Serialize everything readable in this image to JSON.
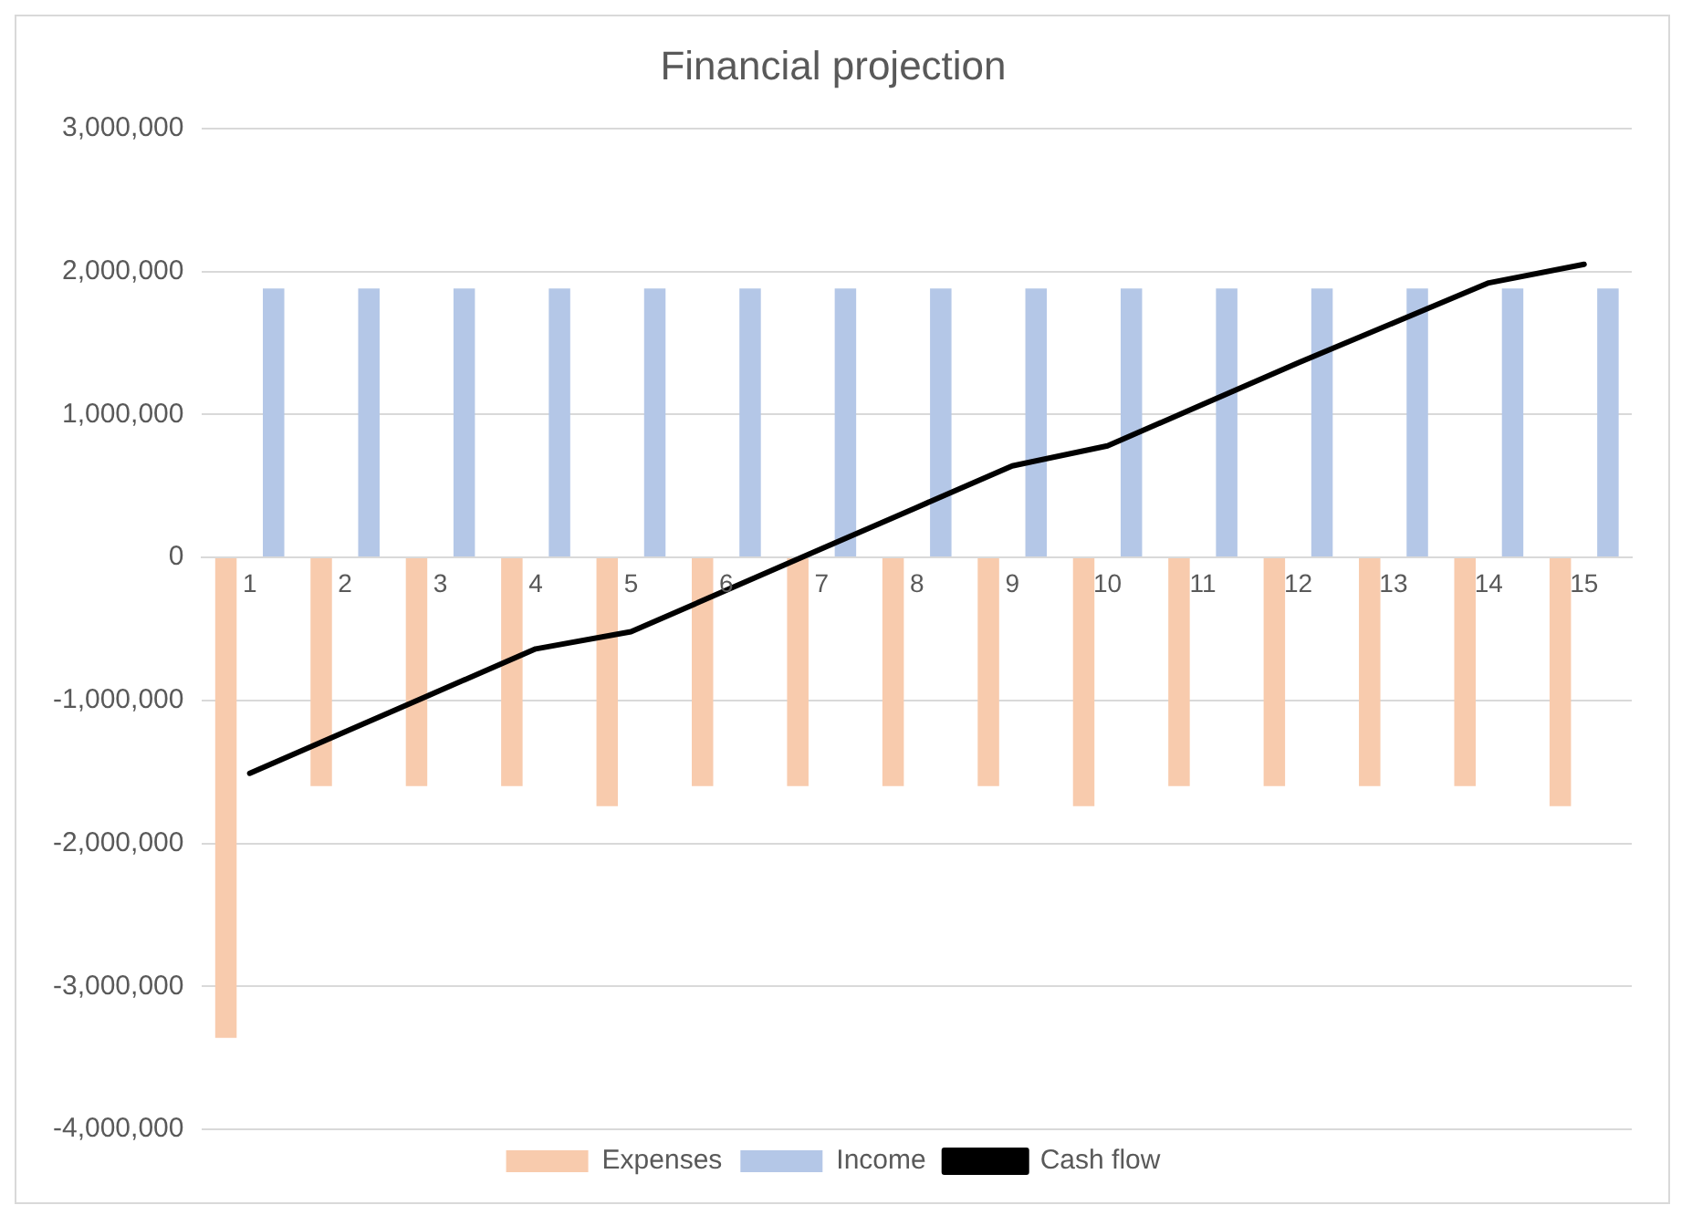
{
  "chart_data": {
    "type": "bar",
    "title": "Financial projection",
    "categories": [
      "1",
      "2",
      "3",
      "4",
      "5",
      "6",
      "7",
      "8",
      "9",
      "10",
      "11",
      "12",
      "13",
      "14",
      "15"
    ],
    "series": [
      {
        "name": "Expenses",
        "color": "#f8cbad",
        "values": [
          -3360000,
          -1600000,
          -1600000,
          -1600000,
          -1740000,
          -1600000,
          -1600000,
          -1600000,
          -1600000,
          -1740000,
          -1600000,
          -1600000,
          -1600000,
          -1600000,
          -1740000
        ]
      },
      {
        "name": "Income",
        "color": "#b4c7e7",
        "values": [
          1880000,
          1880000,
          1880000,
          1880000,
          1880000,
          1880000,
          1880000,
          1880000,
          1880000,
          1880000,
          1880000,
          1880000,
          1880000,
          1880000,
          1880000
        ]
      },
      {
        "name": "Cash flow",
        "type": "line",
        "color": "#000000",
        "values": [
          -1510000,
          -1220000,
          -930000,
          -640000,
          -520000,
          -230000,
          60000,
          350000,
          640000,
          780000,
          1070000,
          1360000,
          1640000,
          1920000,
          2050000
        ]
      }
    ],
    "ylim": [
      -4000000,
      3000000
    ],
    "yticks": [
      {
        "value": -4000000,
        "label": "-4,000,000"
      },
      {
        "value": -3000000,
        "label": "-3,000,000"
      },
      {
        "value": -2000000,
        "label": "-2,000,000"
      },
      {
        "value": -1000000,
        "label": "-1,000,000"
      },
      0,
      {
        "value": 1000000,
        "label": "1,000,000"
      },
      {
        "value": 2000000,
        "label": "2,000,000"
      },
      {
        "value": 3000000,
        "label": "3,000,000"
      }
    ],
    "grid": "y",
    "legend": "bottom",
    "marker": "none"
  }
}
